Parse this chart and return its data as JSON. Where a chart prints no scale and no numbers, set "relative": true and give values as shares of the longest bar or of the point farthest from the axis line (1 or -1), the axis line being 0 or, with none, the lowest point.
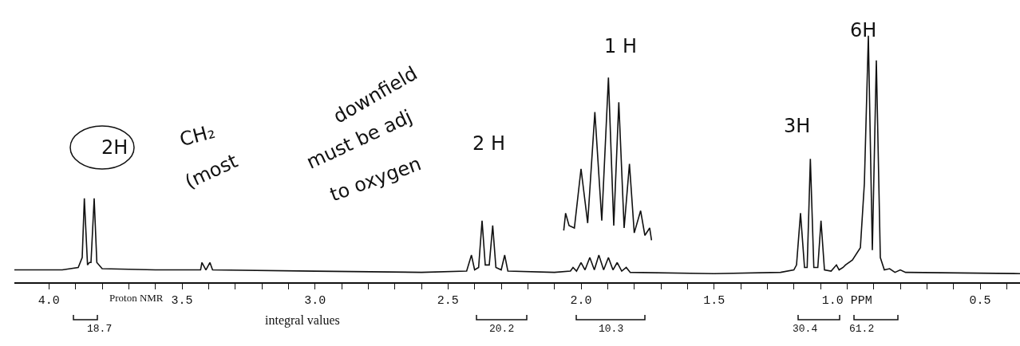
{
  "chart_data": {
    "type": "line",
    "relative": true,
    "marker": "none",
    "line_style": "solid",
    "xlim": [
      4.13,
      0.35
    ],
    "xticks": [
      {
        "value": 4.0,
        "label": "4.0"
      },
      {
        "value": 3.9,
        "label": null
      },
      {
        "value": 3.8,
        "label": null
      },
      {
        "value": 3.7,
        "label": null
      },
      {
        "value": 3.6,
        "label": null
      },
      {
        "value": 3.5,
        "label": "3.5"
      },
      {
        "value": 3.4,
        "label": null
      },
      {
        "value": 3.3,
        "label": null
      },
      {
        "value": 3.2,
        "label": null
      },
      {
        "value": 3.1,
        "label": null
      },
      {
        "value": 3.0,
        "label": "3.0"
      },
      {
        "value": 2.9,
        "label": null
      },
      {
        "value": 2.8,
        "label": null
      },
      {
        "value": 2.7,
        "label": null
      },
      {
        "value": 2.6,
        "label": null
      },
      {
        "value": 2.5,
        "label": "2.5"
      },
      {
        "value": 2.4,
        "label": null
      },
      {
        "value": 2.3,
        "label": null
      },
      {
        "value": 2.2,
        "label": null
      },
      {
        "value": 2.1,
        "label": null
      },
      {
        "value": 2.0,
        "label": "2.0"
      },
      {
        "value": 1.9,
        "label": null
      },
      {
        "value": 1.8,
        "label": null
      },
      {
        "value": 1.7,
        "label": null
      },
      {
        "value": 1.6,
        "label": null
      },
      {
        "value": 1.5,
        "label": "1.5"
      },
      {
        "value": 1.4,
        "label": null
      },
      {
        "value": 1.3,
        "label": null
      },
      {
        "value": 1.2,
        "label": null
      },
      {
        "value": 1.1,
        "label": null
      },
      {
        "value": 1.0,
        "label": "1.0 PPM"
      },
      {
        "value": 0.9,
        "label": null
      },
      {
        "value": 0.8,
        "label": null
      },
      {
        "value": 0.7,
        "label": null
      },
      {
        "value": 0.6,
        "label": null
      },
      {
        "value": 0.5,
        "label": "0.5"
      },
      {
        "value": 0.4,
        "label": null
      }
    ],
    "series": [
      {
        "color": "#111111",
        "x": [
          4.13,
          3.95,
          3.89,
          3.875,
          3.867,
          3.855,
          3.848,
          3.842,
          3.83,
          3.82,
          3.8,
          3.6,
          3.43,
          3.425,
          3.41,
          3.395,
          3.385,
          3.0,
          2.6,
          2.43,
          2.412,
          2.4,
          2.385,
          2.372,
          2.36,
          2.345,
          2.332,
          2.32,
          2.3,
          2.287,
          2.275,
          2.1,
          2.04,
          2.03,
          2.017,
          2.0,
          1.985,
          1.967,
          1.95,
          1.933,
          1.915,
          1.897,
          1.88,
          1.864,
          1.847,
          1.83,
          1.815,
          1.5,
          1.25,
          1.2,
          1.19,
          1.175,
          1.16,
          1.15,
          1.138,
          1.125,
          1.11,
          1.098,
          1.085,
          1.06,
          1.04,
          1.03,
          1.015,
          1.006,
          0.98,
          0.95,
          0.935,
          0.92,
          0.905,
          0.89,
          0.875,
          0.86,
          0.84,
          0.82,
          0.8,
          0.78,
          0.35
        ],
        "values": [
          0.05,
          0.05,
          0.06,
          0.1,
          0.34,
          0.07,
          0.08,
          0.08,
          0.34,
          0.08,
          0.055,
          0.05,
          0.05,
          0.08,
          0.05,
          0.08,
          0.05,
          0.045,
          0.04,
          0.045,
          0.11,
          0.05,
          0.06,
          0.25,
          0.07,
          0.07,
          0.23,
          0.06,
          0.05,
          0.11,
          0.045,
          0.04,
          0.045,
          0.06,
          0.045,
          0.08,
          0.05,
          0.1,
          0.05,
          0.11,
          0.05,
          0.1,
          0.05,
          0.08,
          0.045,
          0.06,
          0.04,
          0.035,
          0.04,
          0.05,
          0.07,
          0.28,
          0.06,
          0.06,
          0.5,
          0.06,
          0.06,
          0.25,
          0.05,
          0.045,
          0.07,
          0.05,
          0.06,
          0.07,
          0.09,
          0.14,
          0.4,
          1.0,
          0.13,
          0.9,
          0.1,
          0.05,
          0.055,
          0.04,
          0.05,
          0.04,
          0.035
        ]
      },
      {
        "color": "#111111",
        "x": [
          2.065,
          2.058,
          2.045,
          2.025,
          2.0,
          1.975,
          1.948,
          1.922,
          1.897,
          1.877,
          1.858,
          1.838,
          1.818,
          1.8,
          1.776,
          1.76,
          1.742,
          1.735
        ],
        "values": [
          0.21,
          0.28,
          0.23,
          0.22,
          0.46,
          0.24,
          0.69,
          0.25,
          0.83,
          0.23,
          0.73,
          0.22,
          0.48,
          0.2,
          0.29,
          0.19,
          0.22,
          0.17
        ]
      }
    ],
    "annotations": [
      "2H",
      "CH₂",
      "(most",
      "downfield",
      "must be adj",
      "to oxygen",
      "Proton NMR",
      "integral values",
      "2 H",
      "1 H",
      "3H",
      "6H",
      "18.7",
      "20.2",
      "10.3",
      "30.4",
      "61.2"
    ]
  }
}
